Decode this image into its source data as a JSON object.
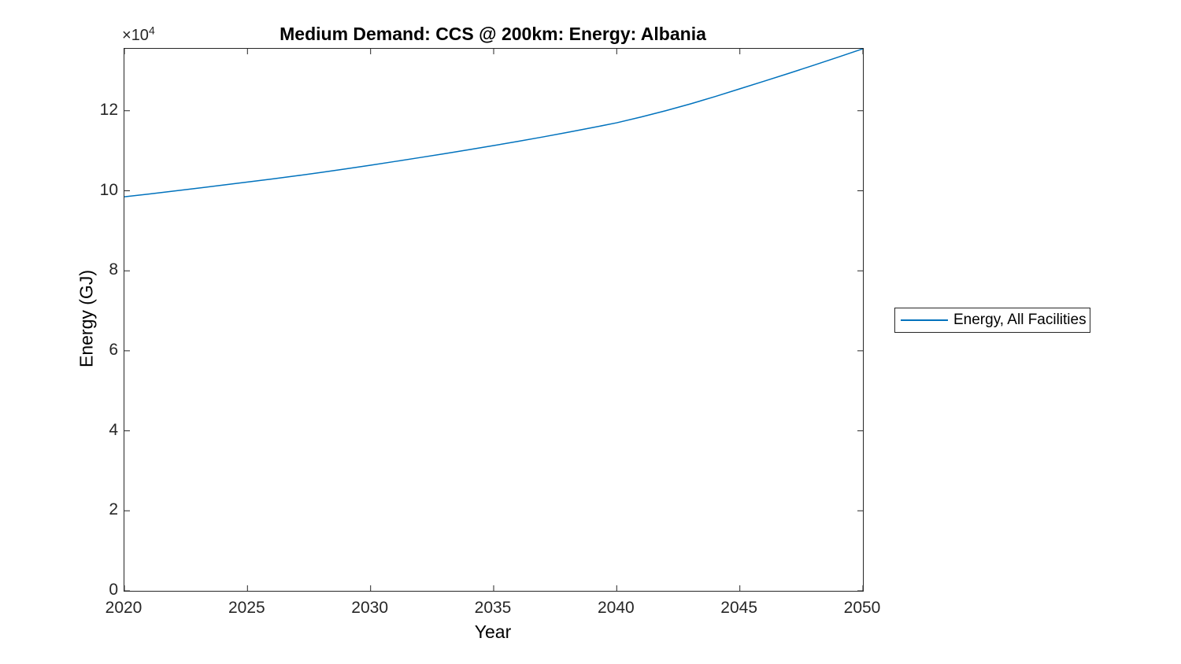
{
  "figure": {
    "background_color": "#ffffff",
    "axis_color": "#262626",
    "y_multiplier": {
      "times": "×",
      "base": "10",
      "exponent": "4"
    },
    "legend": {
      "label": "Energy, All Facilities",
      "line_color": "#0072BD",
      "position": "right-outside"
    }
  },
  "chart_data": {
    "type": "line",
    "title": "Medium Demand: CCS @ 200km: Energy: Albania",
    "xlabel": "Year",
    "ylabel": "Energy (GJ)",
    "y_axis_multiplier_text": "×10⁴",
    "xlim": [
      2020,
      2050
    ],
    "ylim": [
      0,
      135500
    ],
    "x_ticks": [
      2020,
      2025,
      2030,
      2035,
      2040,
      2045,
      2050
    ],
    "x_tick_labels": [
      "2020",
      "2025",
      "2030",
      "2035",
      "2040",
      "2045",
      "2050"
    ],
    "y_ticks": [
      0,
      20000,
      40000,
      60000,
      80000,
      100000,
      120000
    ],
    "y_tick_labels": [
      "0",
      "2",
      "4",
      "6",
      "8",
      "10",
      "12"
    ],
    "grid": false,
    "box": true,
    "tick_direction": "in",
    "legend_position": "right-outside",
    "series": [
      {
        "name": "Energy, All Facilities",
        "color": "#0072BD",
        "x": [
          2020,
          2021,
          2022,
          2023,
          2024,
          2025,
          2026,
          2027,
          2028,
          2029,
          2030,
          2031,
          2032,
          2033,
          2034,
          2035,
          2036,
          2037,
          2038,
          2039,
          2040,
          2041,
          2042,
          2043,
          2044,
          2045,
          2046,
          2047,
          2048,
          2049,
          2050
        ],
        "values": [
          98500,
          99200,
          99920,
          100660,
          101420,
          102200,
          102960,
          103760,
          104600,
          105480,
          106400,
          107340,
          108300,
          109280,
          110280,
          111300,
          112360,
          113460,
          114600,
          115780,
          117000,
          118460,
          120040,
          121740,
          123560,
          125500,
          127420,
          129380,
          131380,
          133420,
          135500
        ]
      }
    ]
  }
}
